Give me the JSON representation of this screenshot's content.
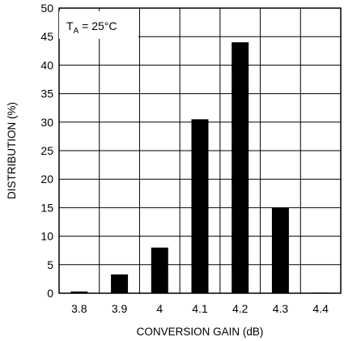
{
  "chart_data": {
    "type": "bar",
    "title": "",
    "xlabel": "CONVERSION GAIN (dB)",
    "ylabel": "DISTRIBUTION (%)",
    "categories": [
      "3.8",
      "3.9",
      "4",
      "4.1",
      "4.2",
      "4.3",
      "4.4"
    ],
    "values": [
      0.3,
      3.3,
      8.0,
      30.5,
      44.0,
      15.0,
      0.1
    ],
    "ylim": [
      0,
      50
    ],
    "yticks": [
      "0",
      "5",
      "10",
      "15",
      "20",
      "25",
      "30",
      "35",
      "40",
      "45",
      "50"
    ],
    "grid": true,
    "legend": "none",
    "bar_color": "#000000",
    "annotation": {
      "prefix": "T",
      "subscript": "A",
      "suffix": " = 25°C"
    }
  }
}
